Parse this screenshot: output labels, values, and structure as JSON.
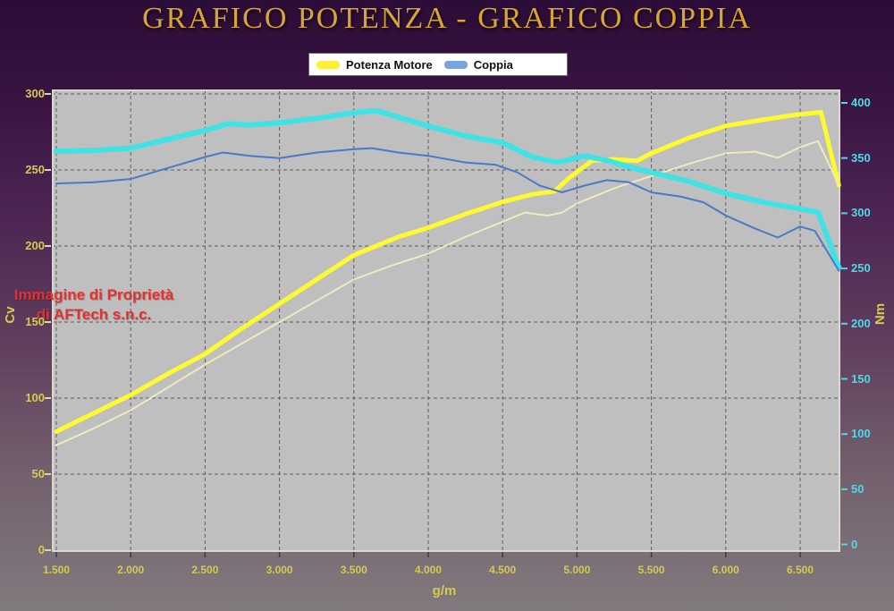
{
  "title": "GRAFICO POTENZA - GRAFICO COPPIA",
  "legend": {
    "items": [
      {
        "label": "Potenza Motore",
        "color": "#ffef3c"
      },
      {
        "label": "Coppia",
        "color": "#7aa1e0"
      }
    ]
  },
  "watermark": {
    "line1": "Immagine di Proprietà",
    "line2": "di AFTech s.n.c.",
    "color": "#e23131"
  },
  "chart_data": {
    "type": "line",
    "title": "GRAFICO POTENZA - GRAFICO COPPIA",
    "grid": {
      "visible": true,
      "style": "dashed",
      "color": "#5c5c5c"
    },
    "legend_position": "top-center",
    "x_axis": {
      "label": "g/m",
      "tick_labels": [
        "1.500",
        "2.000",
        "2.500",
        "3.000",
        "3.500",
        "4.000",
        "4.500",
        "5.000",
        "5.500",
        "6.000",
        "6.500"
      ],
      "tick_values": [
        1500,
        2000,
        2500,
        3000,
        3500,
        4000,
        4500,
        5000,
        5500,
        6000,
        6500
      ],
      "range": [
        1470,
        6760
      ],
      "color": "#d6c94e"
    },
    "y_left": {
      "label": "Cv",
      "ticks": [
        300,
        250,
        200,
        150,
        100,
        50,
        0
      ],
      "range": [
        0,
        300
      ],
      "color": "#d6c94e"
    },
    "y_right": {
      "label": "Nm",
      "ticks": [
        400,
        350,
        300,
        250,
        200,
        150,
        100,
        50,
        0
      ],
      "range": [
        0,
        400
      ],
      "color": "#4fd9e9"
    },
    "series": [
      {
        "id": "potenza-motore",
        "name": "Potenza Motore",
        "axis": "left",
        "unit": "Cv",
        "color": "#fdfa30",
        "width": 5,
        "points": [
          [
            1500,
            78
          ],
          [
            1750,
            90
          ],
          [
            2000,
            102
          ],
          [
            2250,
            116
          ],
          [
            2500,
            129
          ],
          [
            2750,
            146
          ],
          [
            3000,
            162
          ],
          [
            3250,
            178
          ],
          [
            3500,
            194
          ],
          [
            3650,
            200
          ],
          [
            3800,
            206
          ],
          [
            4000,
            212
          ],
          [
            4250,
            221
          ],
          [
            4500,
            229
          ],
          [
            4700,
            234
          ],
          [
            4850,
            236
          ],
          [
            4950,
            245
          ],
          [
            5100,
            256
          ],
          [
            5250,
            257
          ],
          [
            5400,
            256
          ],
          [
            5500,
            261
          ],
          [
            5750,
            271
          ],
          [
            6000,
            279
          ],
          [
            6250,
            283
          ],
          [
            6450,
            286
          ],
          [
            6640,
            288
          ],
          [
            6760,
            240
          ]
        ]
      },
      {
        "id": "potenza-curva-sottile",
        "name": "Potenza Motore",
        "axis": "left",
        "unit": "Cv",
        "color": "#efeabc",
        "width": 2,
        "points": [
          [
            1500,
            69
          ],
          [
            1750,
            80
          ],
          [
            2000,
            92
          ],
          [
            2250,
            107
          ],
          [
            2500,
            122
          ],
          [
            2750,
            136
          ],
          [
            3000,
            150
          ],
          [
            3250,
            164
          ],
          [
            3500,
            178
          ],
          [
            3750,
            187
          ],
          [
            4000,
            195
          ],
          [
            4250,
            206
          ],
          [
            4500,
            216
          ],
          [
            4650,
            222
          ],
          [
            4800,
            220
          ],
          [
            4900,
            222
          ],
          [
            5000,
            228
          ],
          [
            5250,
            238
          ],
          [
            5500,
            246
          ],
          [
            5750,
            254
          ],
          [
            6000,
            261
          ],
          [
            6200,
            262
          ],
          [
            6350,
            258
          ],
          [
            6500,
            265
          ],
          [
            6620,
            269
          ],
          [
            6760,
            240
          ]
        ]
      },
      {
        "id": "coppia",
        "name": "Coppia",
        "axis": "right",
        "unit": "Nm",
        "color": "#3fe3e6",
        "width": 6,
        "points": [
          [
            1500,
            356
          ],
          [
            1750,
            357
          ],
          [
            2000,
            359
          ],
          [
            2250,
            367
          ],
          [
            2500,
            375
          ],
          [
            2650,
            381
          ],
          [
            2800,
            380
          ],
          [
            3000,
            382
          ],
          [
            3250,
            386
          ],
          [
            3500,
            391
          ],
          [
            3650,
            393
          ],
          [
            3800,
            387
          ],
          [
            4000,
            379
          ],
          [
            4250,
            370
          ],
          [
            4500,
            364
          ],
          [
            4700,
            351
          ],
          [
            4870,
            346
          ],
          [
            5050,
            352
          ],
          [
            5200,
            348
          ],
          [
            5350,
            342
          ],
          [
            5500,
            337
          ],
          [
            5750,
            329
          ],
          [
            6000,
            318
          ],
          [
            6250,
            310
          ],
          [
            6500,
            304
          ],
          [
            6620,
            301
          ],
          [
            6760,
            251
          ]
        ]
      },
      {
        "id": "coppia-curva-sottile",
        "name": "Coppia",
        "axis": "right",
        "unit": "Nm",
        "color": "#4a79cb",
        "width": 2,
        "points": [
          [
            1500,
            327
          ],
          [
            1750,
            328
          ],
          [
            2000,
            331
          ],
          [
            2250,
            341
          ],
          [
            2500,
            351
          ],
          [
            2620,
            355
          ],
          [
            2800,
            352
          ],
          [
            3000,
            350
          ],
          [
            3250,
            355
          ],
          [
            3500,
            358
          ],
          [
            3620,
            359
          ],
          [
            3800,
            355
          ],
          [
            4000,
            352
          ],
          [
            4250,
            346
          ],
          [
            4450,
            344
          ],
          [
            4600,
            337
          ],
          [
            4750,
            325
          ],
          [
            4900,
            319
          ],
          [
            5050,
            325
          ],
          [
            5200,
            330
          ],
          [
            5350,
            328
          ],
          [
            5500,
            319
          ],
          [
            5700,
            315
          ],
          [
            5850,
            310
          ],
          [
            6000,
            298
          ],
          [
            6200,
            286
          ],
          [
            6350,
            278
          ],
          [
            6500,
            288
          ],
          [
            6600,
            284
          ],
          [
            6760,
            248
          ]
        ]
      }
    ]
  }
}
